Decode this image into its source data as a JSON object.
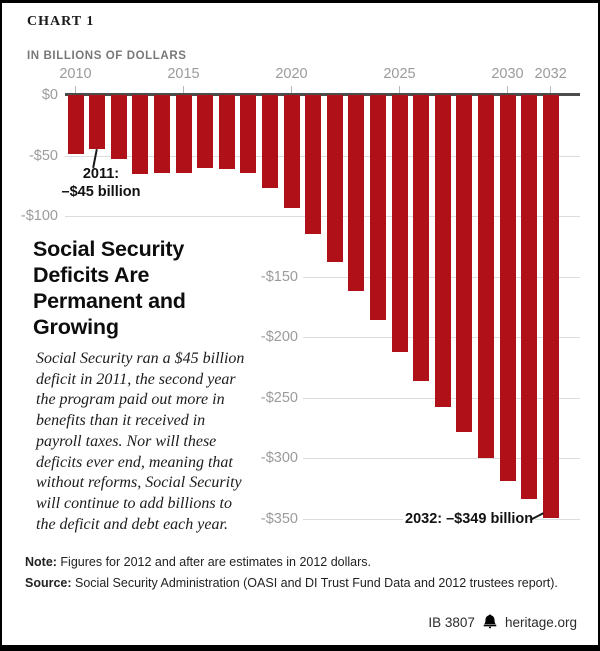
{
  "header": {
    "chart_label": "CHART 1",
    "units_label": "IN BILLIONS OF DOLLARS"
  },
  "headline": "Social Security\nDeficits Are\nPermanent and\nGrowing",
  "description": "Social Security ran a $45 billion\ndeficit in 2011, the second year\nthe program paid out more in\nbenefits than it received in\npayroll taxes. Nor will these\ndeficits ever end, meaning that\nwithout reforms, Social Security\nwill continue to add billions to\nthe deficit and debt each year.",
  "annotations": {
    "y2011": {
      "line1": "2011:",
      "line2": "–$45 billion"
    },
    "y2032": {
      "text": "2032: –$349 billion"
    }
  },
  "note": {
    "label": "Note:",
    "text": " Figures for 2012 and after are estimates in 2012 dollars."
  },
  "source": {
    "label": "Source:",
    "text": " Social Security Administration (OASI and DI Trust Fund Data and 2012 trustees report)."
  },
  "footer": {
    "doc_id": "IB 3807",
    "site": "heritage.org"
  },
  "colors": {
    "bar": "#b01118",
    "axis": "#4c4c4c",
    "grid": "#dcdcdc",
    "tick_label": "#9b9b9b",
    "frame": "#000000"
  },
  "chart_data": {
    "type": "bar",
    "title": "Social Security Deficits Are Permanent and Growing",
    "units": "billions of 2012 dollars",
    "x": [
      2010,
      2011,
      2012,
      2013,
      2014,
      2015,
      2016,
      2017,
      2018,
      2019,
      2020,
      2021,
      2022,
      2023,
      2024,
      2025,
      2026,
      2027,
      2028,
      2029,
      2030,
      2031,
      2032
    ],
    "values": [
      -49,
      -45,
      -53,
      -65,
      -64,
      -64,
      -60,
      -61,
      -64,
      -77,
      -93,
      -115,
      -138,
      -162,
      -186,
      -212,
      -236,
      -258,
      -278,
      -300,
      -319,
      -334,
      -349
    ],
    "x_tick_years": [
      2010,
      2015,
      2020,
      2025,
      2030,
      2032
    ],
    "x_tick_labels": [
      "2010",
      "2015",
      "2020",
      "2025",
      "2030",
      "2032"
    ],
    "y_ticks": [
      {
        "label": "$0",
        "value": 0
      },
      {
        "label": "-$50",
        "value": -50
      },
      {
        "label": "-$100",
        "value": -100
      },
      {
        "label": "-$150",
        "value": -150
      },
      {
        "label": "-$200",
        "value": -200
      },
      {
        "label": "-$250",
        "value": -250
      },
      {
        "label": "-$300",
        "value": -300
      },
      {
        "label": "-$350",
        "value": -350
      }
    ],
    "ylim": [
      -350,
      0
    ],
    "grid": true,
    "bar_color": "#b01118",
    "annotated_points": [
      {
        "year": 2011,
        "value": -45,
        "label": "2011: -$45 billion"
      },
      {
        "year": 2032,
        "value": -349,
        "label": "2032: -$349 billion"
      }
    ]
  }
}
